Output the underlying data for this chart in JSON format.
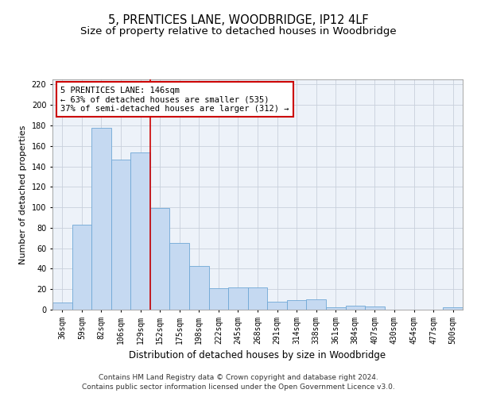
{
  "title": "5, PRENTICES LANE, WOODBRIDGE, IP12 4LF",
  "subtitle": "Size of property relative to detached houses in Woodbridge",
  "xlabel": "Distribution of detached houses by size in Woodbridge",
  "ylabel": "Number of detached properties",
  "categories": [
    "36sqm",
    "59sqm",
    "82sqm",
    "106sqm",
    "129sqm",
    "152sqm",
    "175sqm",
    "198sqm",
    "222sqm",
    "245sqm",
    "268sqm",
    "291sqm",
    "314sqm",
    "338sqm",
    "361sqm",
    "384sqm",
    "407sqm",
    "430sqm",
    "454sqm",
    "477sqm",
    "500sqm"
  ],
  "values": [
    7,
    83,
    178,
    147,
    154,
    99,
    65,
    43,
    21,
    22,
    22,
    8,
    9,
    10,
    2,
    4,
    3,
    0,
    0,
    0,
    2
  ],
  "bar_color": "#c5d9f1",
  "bar_edge_color": "#6fa8d6",
  "grid_color": "#c8d0dc",
  "background_color": "#edf2f9",
  "property_line_x": 4.5,
  "annotation_text": "5 PRENTICES LANE: 146sqm\n← 63% of detached houses are smaller (535)\n37% of semi-detached houses are larger (312) →",
  "annotation_box_color": "#ffffff",
  "annotation_box_edge": "#cc0000",
  "property_line_color": "#cc0000",
  "ylim": [
    0,
    225
  ],
  "yticks": [
    0,
    20,
    40,
    60,
    80,
    100,
    120,
    140,
    160,
    180,
    200,
    220
  ],
  "footer_line1": "Contains HM Land Registry data © Crown copyright and database right 2024.",
  "footer_line2": "Contains public sector information licensed under the Open Government Licence v3.0.",
  "title_fontsize": 10.5,
  "subtitle_fontsize": 9.5,
  "xlabel_fontsize": 8.5,
  "ylabel_fontsize": 8,
  "tick_fontsize": 7,
  "annotation_fontsize": 7.5,
  "footer_fontsize": 6.5
}
